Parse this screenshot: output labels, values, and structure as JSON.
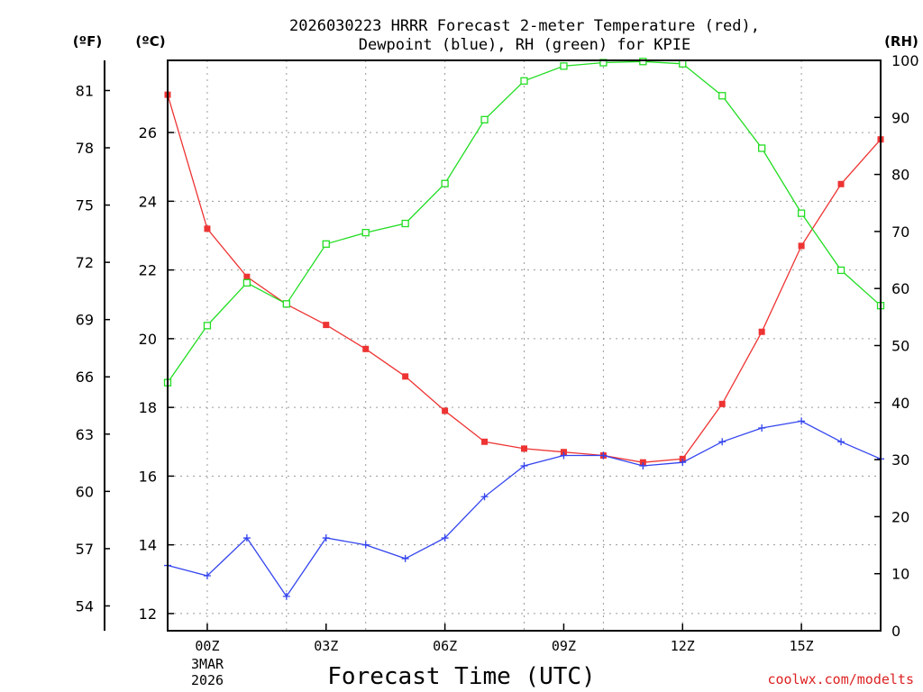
{
  "chart_data": {
    "type": "line",
    "title_line1": "2026030223 HRRR Forecast 2-meter Temperature (red),",
    "title_line2": "Dewpoint (blue), RH (green) for KPIE",
    "xlabel": "Forecast Time (UTC)",
    "credit": "coolwx.com/modelts",
    "left_outer_unit": "(ºF)",
    "left_inner_unit": "(ºC)",
    "right_unit": "(RH)",
    "date_label_line1": "3MAR",
    "date_label_line2": "2026",
    "x_range": [
      -1,
      17
    ],
    "x_ticks": [
      {
        "hour": 0,
        "label": "00Z"
      },
      {
        "hour": 3,
        "label": "03Z"
      },
      {
        "hour": 6,
        "label": "06Z"
      },
      {
        "hour": 9,
        "label": "09Z"
      },
      {
        "hour": 12,
        "label": "12Z"
      },
      {
        "hour": 15,
        "label": "15Z"
      }
    ],
    "x_grid_hours": [
      0,
      2,
      4,
      6,
      8,
      10,
      12,
      15
    ],
    "celsius_range": [
      11.5,
      28.1
    ],
    "celsius_ticks": [
      12,
      14,
      16,
      18,
      20,
      22,
      24,
      26
    ],
    "fahrenheit_ticks": [
      54,
      57,
      60,
      63,
      66,
      69,
      72,
      75,
      78,
      81
    ],
    "rh_range": [
      0,
      100
    ],
    "rh_ticks": [
      0,
      10,
      20,
      30,
      40,
      50,
      60,
      70,
      80,
      90,
      100
    ],
    "hours": [
      -1,
      0,
      1,
      2,
      3,
      4,
      5,
      6,
      7,
      8,
      9,
      10,
      11,
      12,
      13,
      14,
      15,
      16,
      17
    ],
    "series": [
      {
        "name": "Temperature",
        "axis": "celsius",
        "color": "#ee3333",
        "marker": "filled-square",
        "values": [
          27.1,
          23.2,
          21.8,
          21.0,
          20.4,
          19.7,
          18.9,
          17.9,
          17.0,
          16.8,
          16.7,
          16.6,
          16.4,
          16.5,
          18.1,
          20.2,
          22.7,
          24.5,
          25.8
        ]
      },
      {
        "name": "Dewpoint",
        "axis": "celsius",
        "color": "#3344ee",
        "marker": "plus",
        "values": [
          13.4,
          13.1,
          14.2,
          12.5,
          14.2,
          14.0,
          13.6,
          14.2,
          15.4,
          16.3,
          16.6,
          16.6,
          16.3,
          16.4,
          17.0,
          17.4,
          17.6,
          17.0,
          16.5
        ]
      },
      {
        "name": "RH",
        "axis": "rh",
        "color": "#22dd22",
        "marker": "open-square",
        "values": [
          43.5,
          53.5,
          61.0,
          57.3,
          67.8,
          69.8,
          71.4,
          78.4,
          89.6,
          96.4,
          99.0,
          99.6,
          99.8,
          99.4,
          93.8,
          84.6,
          73.2,
          63.2,
          57.0
        ]
      }
    ]
  }
}
